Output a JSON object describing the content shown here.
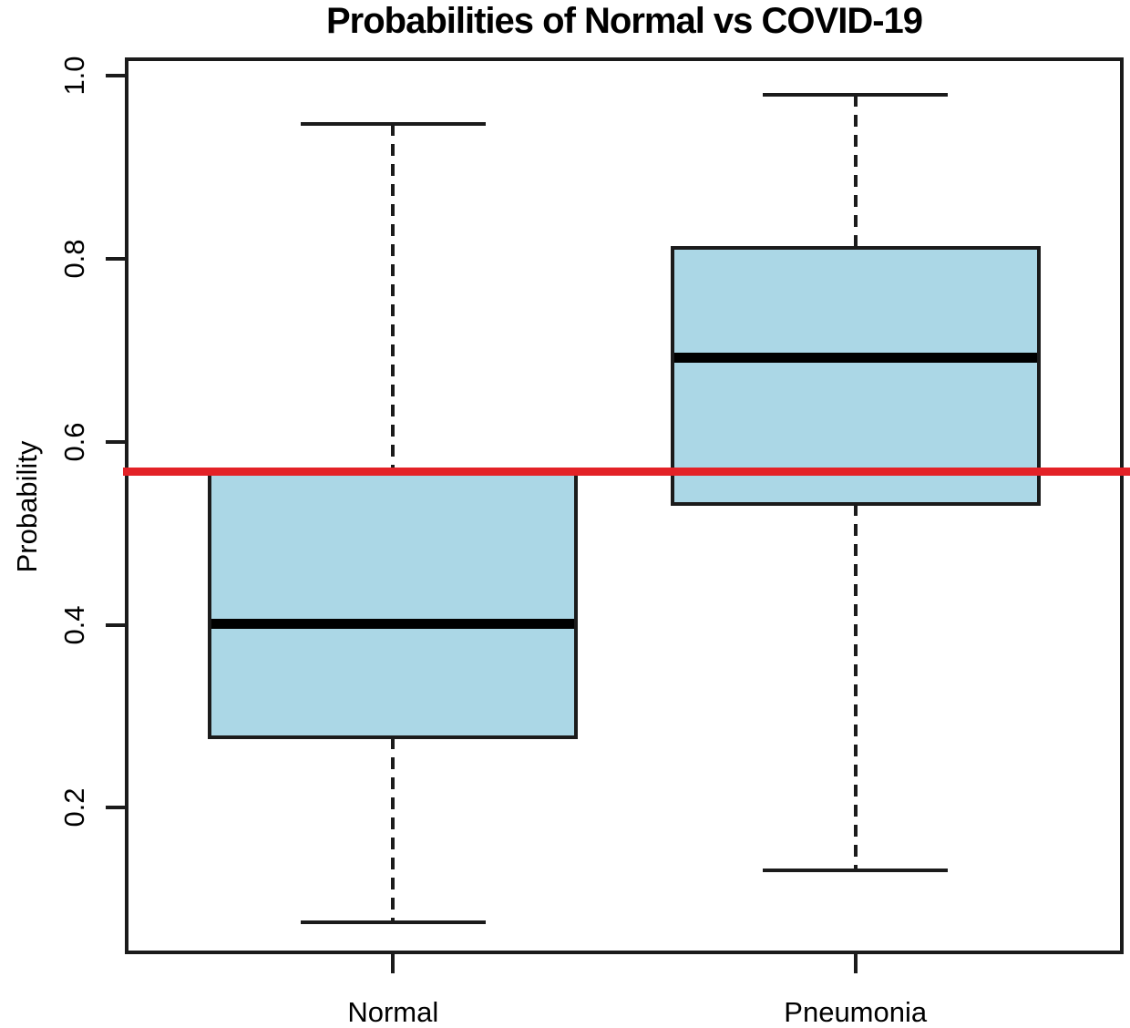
{
  "chart_data": {
    "type": "boxplot",
    "title": "Probabilities of Normal vs COVID-19",
    "ylabel": "Probability",
    "xlabel": "",
    "categories": [
      "Normal",
      "Pneumonia"
    ],
    "positions": [
      1,
      2
    ],
    "xlim": [
      0.42,
      2.58
    ],
    "ylim": [
      0.04,
      1.02
    ],
    "y_ticks": [
      0.2,
      0.4,
      0.6,
      0.8,
      1.0
    ],
    "y_tick_labels": [
      "0.2",
      "0.4",
      "0.6",
      "0.8",
      "1.0"
    ],
    "box_width_units": 0.8,
    "cap_width_units": 0.4,
    "series": [
      {
        "name": "Normal",
        "whisker_low": 0.075,
        "q1": 0.277,
        "median": 0.401,
        "q3": 0.565,
        "whisker_high": 0.947
      },
      {
        "name": "Pneumonia",
        "whisker_low": 0.132,
        "q1": 0.532,
        "median": 0.692,
        "q3": 0.812,
        "whisker_high": 0.979
      }
    ],
    "threshold_line": {
      "value": 0.567
    },
    "colors": {
      "box_fill": "#ABD7E6",
      "box_border": "#1B1B1B",
      "median": "#000000",
      "threshold": "#E32227",
      "axis": "#1B1B1B",
      "text": "#000000",
      "background": "#FFFFFF"
    },
    "grid": false,
    "legend": null
  }
}
